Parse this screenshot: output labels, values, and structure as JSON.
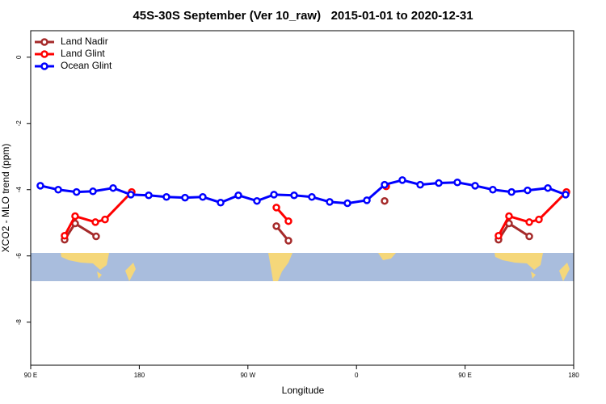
{
  "chart_data": {
    "type": "line",
    "title": "45S-30S September (Ver 10_raw)   2015-01-01 to 2020-12-31",
    "xlabel": "Longitude",
    "ylabel": "XCO2 - MLO trend (ppm)",
    "xlim": [
      90,
      540
    ],
    "xticks": [
      {
        "value": 90,
        "label": "90 E"
      },
      {
        "value": 180,
        "label": "180"
      },
      {
        "value": 270,
        "label": "90 W"
      },
      {
        "value": 360,
        "label": "0"
      },
      {
        "value": 450,
        "label": "90 E"
      },
      {
        "value": 540,
        "label": "180"
      }
    ],
    "ylim": [
      -9.3,
      0.8
    ],
    "yticks": [
      0,
      -2,
      -4,
      -6,
      -8
    ],
    "legend": "top-left",
    "series": [
      {
        "name": "Land Nadir",
        "color": "#a52a2a",
        "x": [
          118.1,
          126.8,
          144.2,
          null,
          293.6,
          303.6,
          null,
          383.3,
          null,
          477.7,
          486.4,
          503.2
        ],
        "values": [
          -5.51,
          -5.02,
          -5.41,
          null,
          -5.1,
          -5.54,
          null,
          -4.34,
          null,
          -5.51,
          -5.02,
          -5.41
        ]
      },
      {
        "name": "Land Glint",
        "color": "#ff0000",
        "x": [
          118.1,
          126.8,
          143.6,
          151.6,
          173.7,
          null,
          293.6,
          303.6,
          null,
          384.6,
          null,
          477.7,
          486.4,
          503.2,
          511.2,
          534
        ],
        "values": [
          -5.39,
          -4.8,
          -4.98,
          -4.9,
          -4.07,
          null,
          -4.54,
          -4.95,
          null,
          -3.9,
          null,
          -5.39,
          -4.8,
          -4.98,
          -4.9,
          -4.07
        ]
      },
      {
        "name": "Ocean Glint",
        "color": "#0000ff",
        "x": [
          98,
          112.8,
          128,
          141.6,
          158.3,
          173,
          187.8,
          202.5,
          217.9,
          232.6,
          247.4,
          262.1,
          277.5,
          291.6,
          308.3,
          323,
          337.8,
          352.5,
          368.6,
          383.3,
          398,
          412.8,
          428.2,
          443.6,
          458.3,
          473,
          488.5,
          501.8,
          518.6,
          533.3
        ],
        "values": [
          -3.88,
          -4.0,
          -4.07,
          -4.05,
          -3.95,
          -4.15,
          -4.17,
          -4.22,
          -4.24,
          -4.22,
          -4.39,
          -4.17,
          -4.34,
          -4.15,
          -4.17,
          -4.22,
          -4.37,
          -4.41,
          -4.32,
          -3.85,
          -3.71,
          -3.85,
          -3.8,
          -3.78,
          -3.88,
          -4.0,
          -4.07,
          -4.02,
          -3.95,
          -4.15
        ]
      }
    ]
  }
}
